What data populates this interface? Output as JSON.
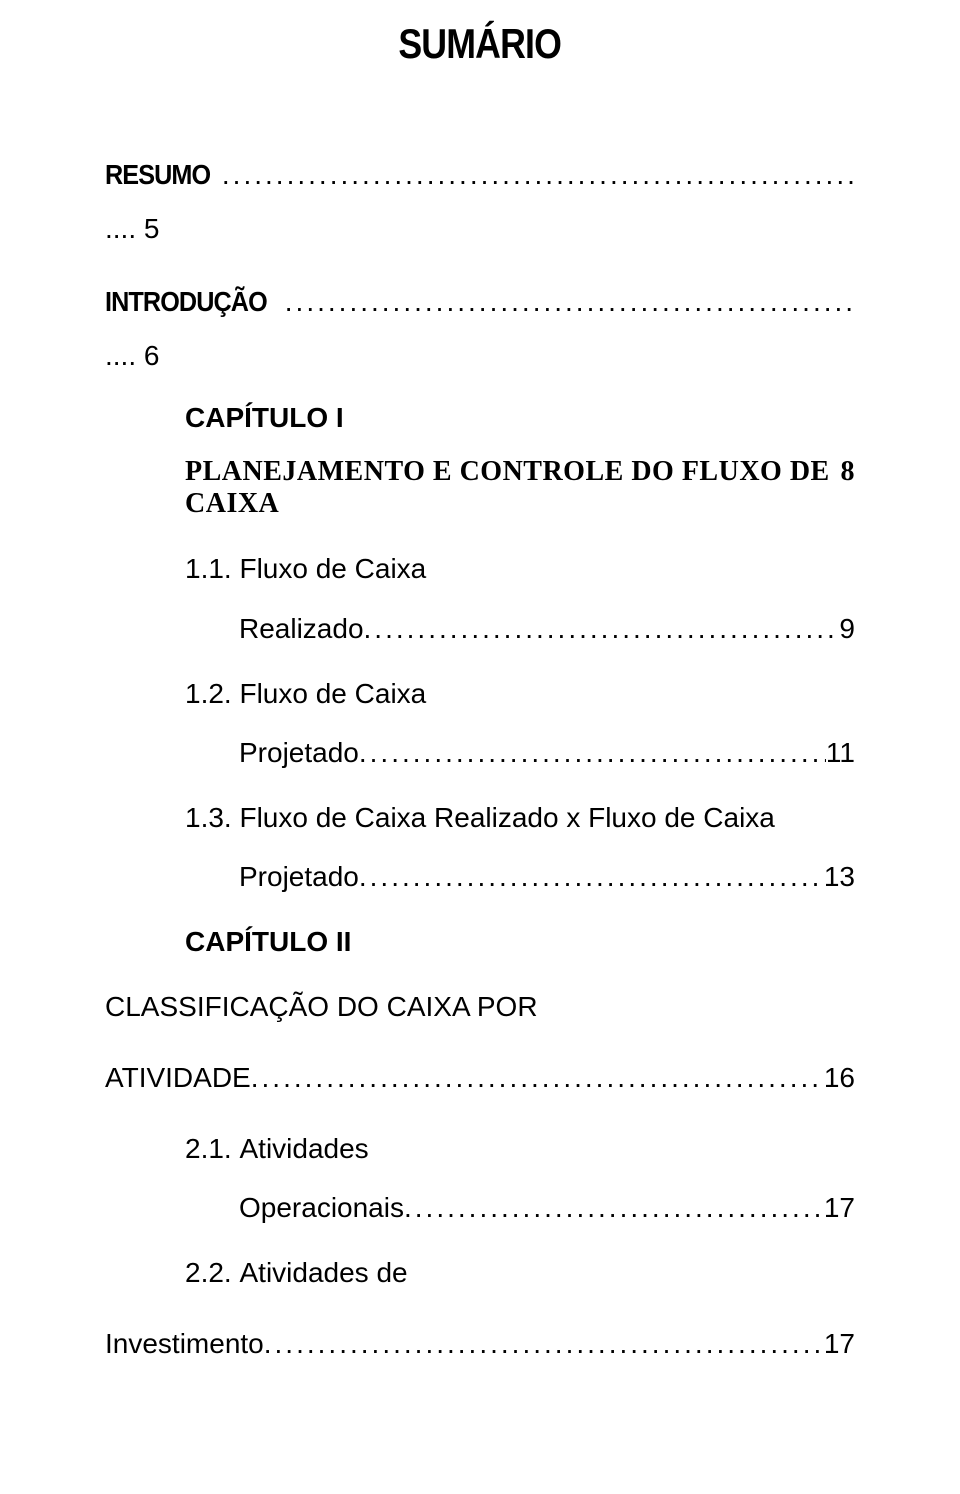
{
  "colors": {
    "text": "#000000",
    "background": "#ffffff"
  },
  "typography": {
    "heavy_font": "Impact",
    "body_font": "Arial",
    "serif_font": "Times New Roman",
    "title_fontsize_pt": 32,
    "body_fontsize_pt": 21
  },
  "title": "SUMÁRIO",
  "entries": {
    "resumo": {
      "label": "RESUMO",
      "page_prefix": "....",
      "page": "5"
    },
    "introducao": {
      "label": "INTRODUÇÃO",
      "page_prefix": "....",
      "page": "6"
    },
    "cap1": {
      "heading": "CAPÍTULO I",
      "subtitle": "PLANEJAMENTO E CONTROLE DO FLUXO DE CAIXA",
      "page": "8",
      "items": [
        {
          "num": "1.1.",
          "text": "Fluxo de Caixa",
          "wrap": "Realizado",
          "page": "9"
        },
        {
          "num": "1.2.",
          "text": "Fluxo de Caixa",
          "wrap": "Projetado",
          "page": "11"
        },
        {
          "num": "1.3.",
          "text": "Fluxo de Caixa Realizado x Fluxo de Caixa",
          "wrap": "Projetado",
          "page": "13"
        }
      ]
    },
    "cap2": {
      "heading": "CAPÍTULO II",
      "subtitle_line1": "CLASSIFICAÇÃO DO CAIXA POR",
      "subtitle_line2": "ATIVIDADE",
      "page": "16",
      "items": [
        {
          "num": "2.1.",
          "text": "Atividades",
          "wrap": "Operacionais",
          "page": "17"
        },
        {
          "num": "2.2.",
          "text": "Atividades de",
          "wrap": "Investimento",
          "page": "17"
        }
      ]
    }
  }
}
